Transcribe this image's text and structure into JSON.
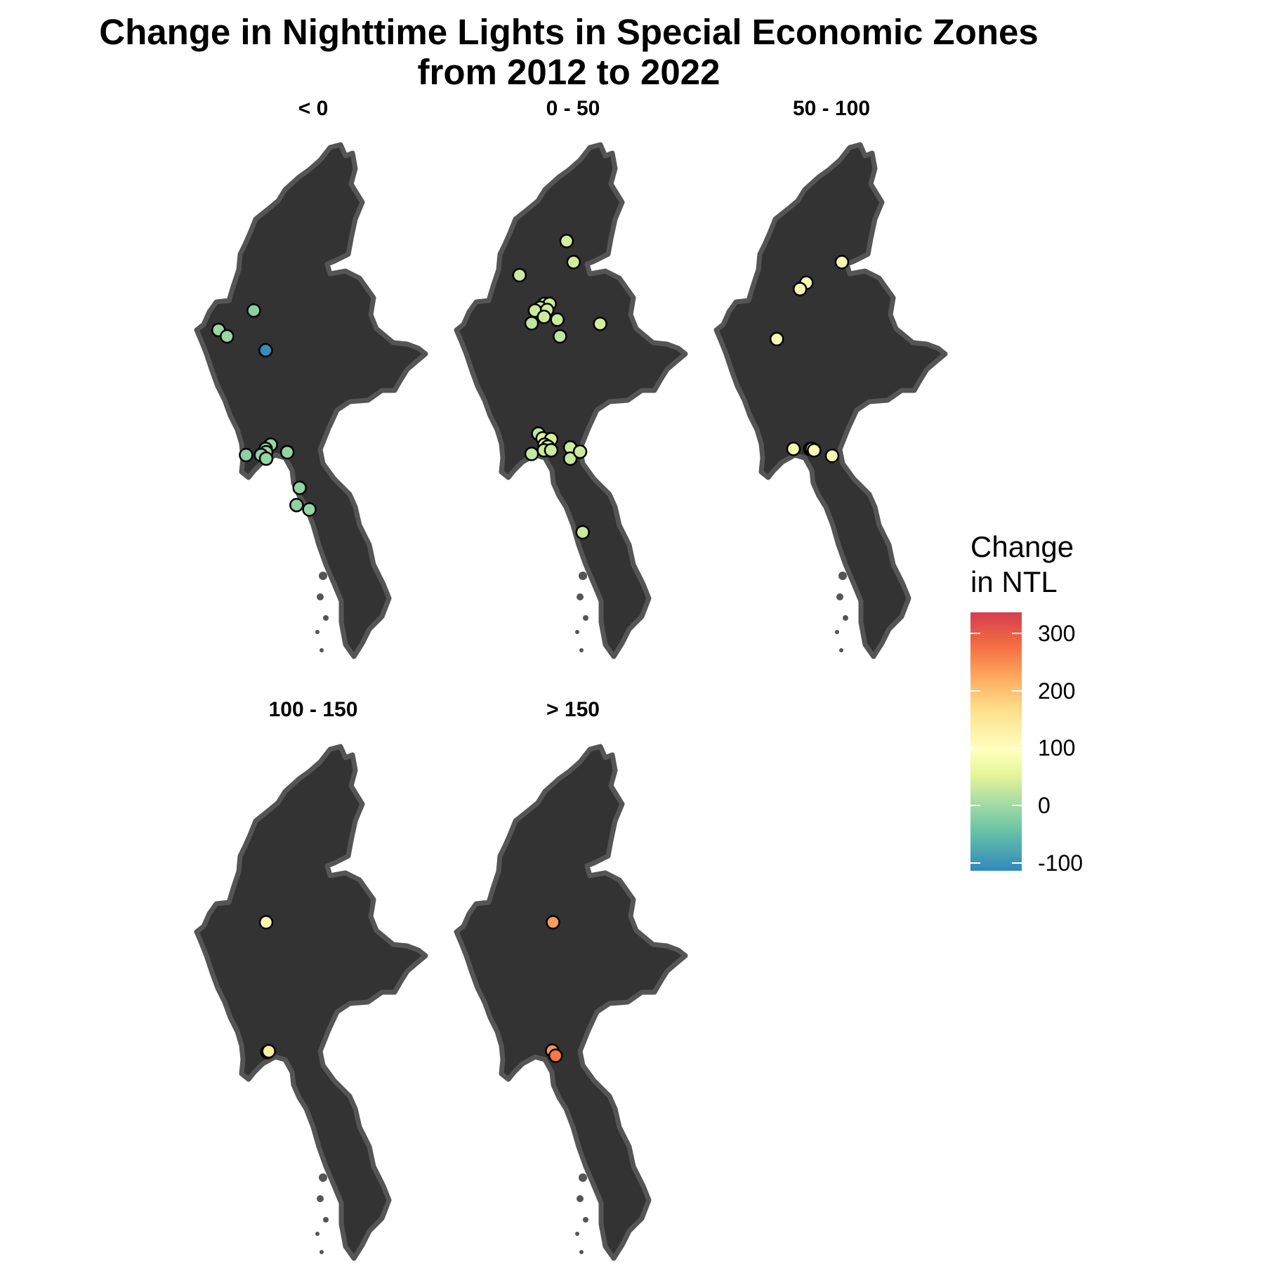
{
  "title": {
    "line1": "Change in Nighttime Lights in Special Economic Zones",
    "line2": "from 2012 to 2022"
  },
  "legend": {
    "title_line1": "Change",
    "title_line2": "in NTL",
    "ticks": [
      "300",
      "200",
      "100",
      "0",
      "-100"
    ],
    "range": [
      -115,
      335
    ],
    "scale": "Spectral (blue-green-yellow-red)"
  },
  "colors": {
    "land": "#333333",
    "border": "#555555",
    "background": "#ffffff",
    "point_stroke": "#000000"
  },
  "facets": [
    {
      "label": "< 0",
      "points": [
        {
          "lon": 94.42,
          "lat": 22.38,
          "value": -22
        },
        {
          "lon": 93.05,
          "lat": 21.68,
          "value": -8
        },
        {
          "lon": 93.38,
          "lat": 21.45,
          "value": -10
        },
        {
          "lon": 94.88,
          "lat": 20.95,
          "value": -110
        },
        {
          "lon": 95.08,
          "lat": 17.55,
          "value": -12
        },
        {
          "lon": 94.88,
          "lat": 17.4,
          "value": -15
        },
        {
          "lon": 94.9,
          "lat": 17.28,
          "value": -10
        },
        {
          "lon": 94.7,
          "lat": 17.18,
          "value": -18
        },
        {
          "lon": 94.9,
          "lat": 17.05,
          "value": -12
        },
        {
          "lon": 94.12,
          "lat": 17.18,
          "value": -20
        },
        {
          "lon": 95.72,
          "lat": 17.28,
          "value": -14
        },
        {
          "lon": 96.2,
          "lat": 16.0,
          "value": -15
        },
        {
          "lon": 96.08,
          "lat": 15.38,
          "value": -18
        },
        {
          "lon": 96.58,
          "lat": 15.22,
          "value": -12
        }
      ]
    },
    {
      "label": "0 - 50",
      "points": [
        {
          "lon": 96.48,
          "lat": 24.88,
          "value": 35
        },
        {
          "lon": 96.75,
          "lat": 24.12,
          "value": 35
        },
        {
          "lon": 94.65,
          "lat": 23.65,
          "value": 30
        },
        {
          "lon": 95.62,
          "lat": 22.62,
          "value": 30
        },
        {
          "lon": 95.82,
          "lat": 22.62,
          "value": 30
        },
        {
          "lon": 95.45,
          "lat": 22.48,
          "value": 30
        },
        {
          "lon": 95.25,
          "lat": 22.38,
          "value": 30
        },
        {
          "lon": 95.72,
          "lat": 22.4,
          "value": 30
        },
        {
          "lon": 95.6,
          "lat": 22.15,
          "value": 30
        },
        {
          "lon": 95.12,
          "lat": 21.92,
          "value": 20
        },
        {
          "lon": 96.12,
          "lat": 22.05,
          "value": 30
        },
        {
          "lon": 97.78,
          "lat": 21.9,
          "value": 35
        },
        {
          "lon": 96.22,
          "lat": 21.45,
          "value": 20
        },
        {
          "lon": 95.38,
          "lat": 17.95,
          "value": 20
        },
        {
          "lon": 95.55,
          "lat": 17.78,
          "value": 45
        },
        {
          "lon": 95.88,
          "lat": 17.75,
          "value": 40
        },
        {
          "lon": 95.62,
          "lat": 17.55,
          "value": 40
        },
        {
          "lon": 95.75,
          "lat": 17.48,
          "value": 35
        },
        {
          "lon": 95.6,
          "lat": 17.35,
          "value": 30
        },
        {
          "lon": 95.88,
          "lat": 17.35,
          "value": 30
        },
        {
          "lon": 95.12,
          "lat": 17.22,
          "value": 25
        },
        {
          "lon": 96.62,
          "lat": 17.45,
          "value": 30
        },
        {
          "lon": 96.62,
          "lat": 17.05,
          "value": 25
        },
        {
          "lon": 97.0,
          "lat": 17.3,
          "value": 30
        },
        {
          "lon": 97.1,
          "lat": 14.4,
          "value": 30
        }
      ]
    },
    {
      "label": "50 - 100",
      "points": [
        {
          "lon": 97.08,
          "lat": 24.12,
          "value": 85
        },
        {
          "lon": 95.7,
          "lat": 23.38,
          "value": 85
        },
        {
          "lon": 95.45,
          "lat": 23.15,
          "value": 85
        },
        {
          "lon": 94.55,
          "lat": 21.35,
          "value": 80
        },
        {
          "lon": 95.2,
          "lat": 17.4,
          "value": 75
        },
        {
          "lon": 95.85,
          "lat": 17.4,
          "value": 90
        },
        {
          "lon": 95.92,
          "lat": 17.4,
          "value": 90
        },
        {
          "lon": 96.0,
          "lat": 17.35,
          "value": 85
        },
        {
          "lon": 96.7,
          "lat": 17.15,
          "value": 80
        }
      ]
    },
    {
      "label": "100 - 150",
      "points": [
        {
          "lon": 94.9,
          "lat": 22.02,
          "value": 120
        },
        {
          "lon": 94.95,
          "lat": 17.35,
          "value": 140
        },
        {
          "lon": 95.0,
          "lat": 17.38,
          "value": 140
        }
      ]
    },
    {
      "label": "> 150",
      "points": [
        {
          "lon": 95.95,
          "lat": 22.02,
          "value": 235
        },
        {
          "lon": 95.92,
          "lat": 17.4,
          "value": 240
        },
        {
          "lon": 96.05,
          "lat": 17.22,
          "value": 270
        }
      ]
    }
  ]
}
